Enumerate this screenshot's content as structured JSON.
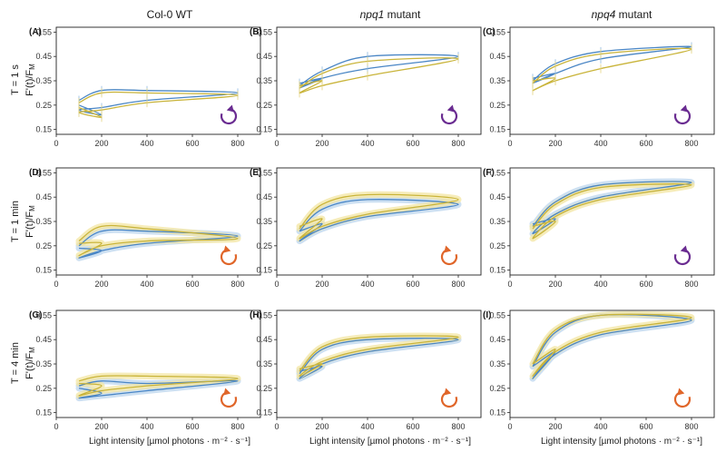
{
  "columns": [
    {
      "pre": "",
      "em": "",
      "post": "Col-0 WT"
    },
    {
      "pre": "",
      "em": "npq1",
      "post": " mutant"
    },
    {
      "pre": "",
      "em": "npq4",
      "post": " mutant"
    }
  ],
  "rows": [
    "T = 1 s",
    "T = 1 min",
    "T = 4 min"
  ],
  "ylabel": "F'(t)/F",
  "ylabel_sub": "M",
  "xlabel": "Light intensity [µmol photons · m⁻² · s⁻¹]",
  "colors": {
    "blue": "#4a86c5",
    "yellow": "#c9b43a",
    "band_blue": "#bcd6ee",
    "band_yellow": "#f3e6a2",
    "purple": "#6a2c91",
    "orange": "#e0662a"
  },
  "chart_data": [
    {
      "panel": "(A)",
      "type": "line",
      "xlim": [
        0,
        900
      ],
      "ylim": [
        0.13,
        0.57
      ],
      "xticks": [
        0,
        200,
        400,
        600,
        800
      ],
      "yticks": [
        0.15,
        0.25,
        0.35,
        0.45,
        0.55
      ],
      "icon": "purple-counterclockwise",
      "series": [
        {
          "color": "blue",
          "x": [
            100,
            200,
            400,
            800,
            400,
            200,
            100,
            200,
            100
          ],
          "y": [
            0.27,
            0.31,
            0.31,
            0.3,
            0.27,
            0.24,
            0.23,
            0.21,
            0.25
          ]
        },
        {
          "color": "yellow",
          "x": [
            100,
            200,
            400,
            800,
            400,
            200,
            100,
            200,
            100
          ],
          "y": [
            0.26,
            0.3,
            0.3,
            0.29,
            0.26,
            0.23,
            0.22,
            0.2,
            0.24
          ]
        }
      ]
    },
    {
      "panel": "(B)",
      "type": "line",
      "xlim": [
        0,
        900
      ],
      "ylim": [
        0.13,
        0.57
      ],
      "xticks": [
        0,
        200,
        400,
        600,
        800
      ],
      "yticks": [
        0.15,
        0.25,
        0.35,
        0.45,
        0.55
      ],
      "icon": "purple-counterclockwise",
      "series": [
        {
          "color": "blue",
          "x": [
            100,
            200,
            400,
            800,
            400,
            200,
            100,
            200,
            100
          ],
          "y": [
            0.33,
            0.39,
            0.45,
            0.45,
            0.4,
            0.36,
            0.32,
            0.36,
            0.34
          ]
        },
        {
          "color": "yellow",
          "x": [
            100,
            200,
            400,
            800,
            400,
            200,
            100,
            200,
            100
          ],
          "y": [
            0.32,
            0.38,
            0.43,
            0.44,
            0.37,
            0.33,
            0.3,
            0.35,
            0.33
          ]
        }
      ]
    },
    {
      "panel": "(C)",
      "type": "line",
      "xlim": [
        0,
        900
      ],
      "ylim": [
        0.13,
        0.57
      ],
      "xticks": [
        0,
        200,
        400,
        600,
        800
      ],
      "yticks": [
        0.15,
        0.25,
        0.35,
        0.45,
        0.55
      ],
      "icon": "purple-counterclockwise",
      "series": [
        {
          "color": "blue",
          "x": [
            100,
            200,
            400,
            800,
            400,
            200,
            100,
            200,
            100
          ],
          "y": [
            0.35,
            0.42,
            0.47,
            0.49,
            0.44,
            0.38,
            0.34,
            0.38,
            0.36
          ]
        },
        {
          "color": "yellow",
          "x": [
            100,
            200,
            400,
            800,
            400,
            200,
            100,
            200,
            100
          ],
          "y": [
            0.34,
            0.41,
            0.46,
            0.48,
            0.4,
            0.35,
            0.31,
            0.36,
            0.35
          ]
        }
      ]
    },
    {
      "panel": "(D)",
      "type": "line",
      "xlim": [
        0,
        900
      ],
      "ylim": [
        0.13,
        0.57
      ],
      "xticks": [
        0,
        200,
        400,
        600,
        800
      ],
      "yticks": [
        0.15,
        0.25,
        0.35,
        0.45,
        0.55
      ],
      "icon": "orange-clockwise",
      "series": [
        {
          "color": "blue",
          "x": [
            100,
            200,
            400,
            800,
            400,
            200,
            100,
            200,
            100
          ],
          "y": [
            0.25,
            0.31,
            0.31,
            0.29,
            0.26,
            0.23,
            0.2,
            0.23,
            0.24
          ]
        },
        {
          "color": "yellow",
          "x": [
            100,
            200,
            400,
            800,
            400,
            200,
            100,
            200,
            100
          ],
          "y": [
            0.27,
            0.33,
            0.32,
            0.28,
            0.27,
            0.25,
            0.21,
            0.26,
            0.26
          ]
        }
      ]
    },
    {
      "panel": "(E)",
      "type": "line",
      "xlim": [
        0,
        900
      ],
      "ylim": [
        0.13,
        0.57
      ],
      "xticks": [
        0,
        200,
        400,
        600,
        800
      ],
      "yticks": [
        0.15,
        0.25,
        0.35,
        0.45,
        0.55
      ],
      "icon": "orange-clockwise",
      "series": [
        {
          "color": "blue",
          "x": [
            100,
            200,
            400,
            800,
            400,
            200,
            100,
            200,
            100
          ],
          "y": [
            0.31,
            0.4,
            0.44,
            0.42,
            0.37,
            0.32,
            0.27,
            0.34,
            0.31
          ]
        },
        {
          "color": "yellow",
          "x": [
            100,
            200,
            400,
            800,
            400,
            200,
            100,
            200,
            100
          ],
          "y": [
            0.32,
            0.42,
            0.46,
            0.44,
            0.38,
            0.33,
            0.28,
            0.36,
            0.33
          ]
        }
      ]
    },
    {
      "panel": "(F)",
      "type": "line",
      "xlim": [
        0,
        900
      ],
      "ylim": [
        0.13,
        0.57
      ],
      "xticks": [
        0,
        200,
        400,
        600,
        800
      ],
      "yticks": [
        0.15,
        0.25,
        0.35,
        0.45,
        0.55
      ],
      "icon": "purple-counterclockwise",
      "series": [
        {
          "color": "blue",
          "x": [
            100,
            200,
            400,
            800,
            400,
            200,
            100,
            200,
            100
          ],
          "y": [
            0.33,
            0.43,
            0.5,
            0.51,
            0.45,
            0.38,
            0.3,
            0.36,
            0.34
          ]
        },
        {
          "color": "yellow",
          "x": [
            100,
            200,
            400,
            800,
            400,
            200,
            100,
            200,
            100
          ],
          "y": [
            0.32,
            0.42,
            0.49,
            0.5,
            0.44,
            0.37,
            0.28,
            0.35,
            0.33
          ]
        }
      ]
    },
    {
      "panel": "(G)",
      "type": "line",
      "xlim": [
        0,
        900
      ],
      "ylim": [
        0.13,
        0.57
      ],
      "xticks": [
        0,
        200,
        400,
        600,
        800
      ],
      "yticks": [
        0.15,
        0.25,
        0.35,
        0.45,
        0.55
      ],
      "icon": "orange-clockwise",
      "series": [
        {
          "color": "blue",
          "x": [
            100,
            200,
            400,
            800,
            400,
            200,
            100,
            200,
            100
          ],
          "y": [
            0.26,
            0.28,
            0.27,
            0.28,
            0.24,
            0.22,
            0.21,
            0.23,
            0.25
          ]
        },
        {
          "color": "yellow",
          "x": [
            100,
            200,
            400,
            800,
            400,
            200,
            100,
            200,
            100
          ],
          "y": [
            0.28,
            0.3,
            0.3,
            0.29,
            0.26,
            0.24,
            0.22,
            0.26,
            0.27
          ]
        }
      ]
    },
    {
      "panel": "(H)",
      "type": "line",
      "xlim": [
        0,
        900
      ],
      "ylim": [
        0.13,
        0.57
      ],
      "xticks": [
        0,
        200,
        400,
        600,
        800
      ],
      "yticks": [
        0.15,
        0.25,
        0.35,
        0.45,
        0.55
      ],
      "icon": "orange-clockwise",
      "series": [
        {
          "color": "blue",
          "x": [
            100,
            200,
            400,
            800,
            400,
            200,
            100,
            200,
            100
          ],
          "y": [
            0.31,
            0.41,
            0.45,
            0.45,
            0.4,
            0.35,
            0.29,
            0.34,
            0.32
          ]
        },
        {
          "color": "yellow",
          "x": [
            100,
            200,
            400,
            800,
            400,
            200,
            100,
            200,
            100
          ],
          "y": [
            0.32,
            0.42,
            0.46,
            0.46,
            0.41,
            0.36,
            0.3,
            0.35,
            0.33
          ]
        }
      ]
    },
    {
      "panel": "(I)",
      "type": "line",
      "xlim": [
        0,
        900
      ],
      "ylim": [
        0.13,
        0.57
      ],
      "xticks": [
        0,
        200,
        400,
        600,
        800
      ],
      "yticks": [
        0.15,
        0.25,
        0.35,
        0.45,
        0.55
      ],
      "icon": "orange-clockwise",
      "series": [
        {
          "color": "blue",
          "x": [
            100,
            200,
            400,
            800,
            400,
            200,
            100,
            200,
            100
          ],
          "y": [
            0.34,
            0.48,
            0.55,
            0.53,
            0.47,
            0.39,
            0.29,
            0.4,
            0.34
          ]
        },
        {
          "color": "yellow",
          "x": [
            100,
            200,
            400,
            800,
            400,
            200,
            100,
            200,
            100
          ],
          "y": [
            0.35,
            0.49,
            0.55,
            0.54,
            0.48,
            0.4,
            0.3,
            0.41,
            0.35
          ]
        }
      ]
    }
  ]
}
